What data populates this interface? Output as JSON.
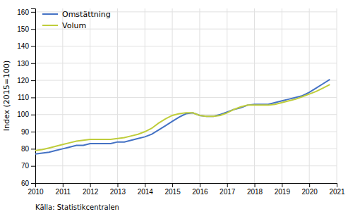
{
  "chart_data": {
    "type": "line",
    "x": [
      2010.0,
      2010.25,
      2010.5,
      2010.75,
      2011.0,
      2011.25,
      2011.5,
      2011.75,
      2012.0,
      2012.25,
      2012.5,
      2012.75,
      2013.0,
      2013.25,
      2013.5,
      2013.75,
      2014.0,
      2014.25,
      2014.5,
      2014.75,
      2015.0,
      2015.25,
      2015.5,
      2015.75,
      2016.0,
      2016.25,
      2016.5,
      2016.75,
      2017.0,
      2017.25,
      2017.5,
      2017.75,
      2018.0,
      2018.25,
      2018.5,
      2018.75,
      2019.0,
      2019.25,
      2019.5,
      2019.75,
      2020.0,
      2020.25,
      2020.5,
      2020.75
    ],
    "series": [
      {
        "name": "Omstättning",
        "color": "#4472C4",
        "values": [
          77.0,
          77.5,
          78.0,
          79.0,
          80.0,
          81.0,
          82.0,
          82.0,
          83.0,
          83.0,
          83.0,
          83.0,
          84.0,
          84.0,
          85.0,
          86.0,
          87.0,
          88.5,
          91.0,
          93.5,
          96.0,
          98.5,
          100.5,
          101.0,
          99.5,
          99.0,
          99.0,
          100.0,
          101.5,
          103.0,
          104.0,
          105.5,
          106.0,
          106.0,
          106.0,
          107.0,
          108.0,
          109.0,
          110.0,
          111.0,
          113.0,
          115.5,
          118.0,
          120.5
        ]
      },
      {
        "name": "Volum",
        "color": "#BFCD3B",
        "values": [
          79.0,
          79.5,
          80.5,
          81.5,
          82.5,
          83.5,
          84.5,
          85.0,
          85.5,
          85.5,
          85.5,
          85.5,
          86.0,
          86.5,
          87.5,
          88.5,
          90.0,
          92.0,
          95.0,
          97.5,
          99.5,
          100.5,
          101.0,
          101.0,
          99.5,
          99.0,
          99.0,
          99.5,
          101.0,
          103.0,
          104.5,
          105.5,
          105.5,
          105.5,
          105.5,
          106.0,
          107.0,
          108.0,
          109.0,
          110.5,
          112.0,
          113.5,
          115.5,
          117.5
        ]
      }
    ],
    "xlim": [
      2010,
      2021
    ],
    "xticks": [
      2010,
      2011,
      2012,
      2013,
      2014,
      2015,
      2016,
      2017,
      2018,
      2019,
      2020,
      2021
    ],
    "ylim": [
      60,
      162
    ],
    "yticks": [
      60,
      70,
      80,
      90,
      100,
      110,
      120,
      130,
      140,
      150,
      160
    ],
    "ylabel": "Index (2015=100)",
    "annotations": [
      "Källa: Statistikcentralen"
    ],
    "grid": true,
    "legend": "upper left"
  }
}
